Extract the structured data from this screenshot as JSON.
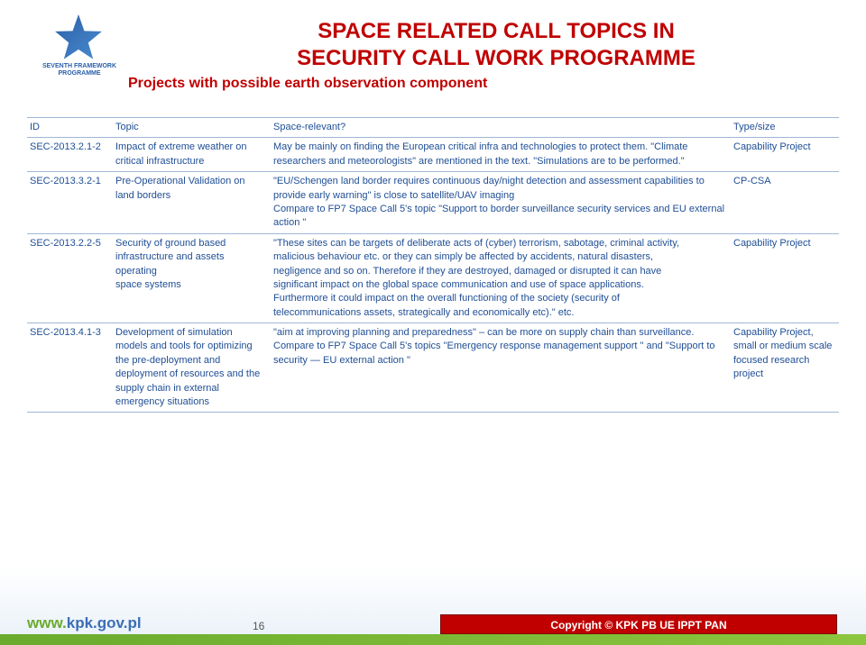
{
  "logo": {
    "line1": "SEVENTH FRAMEWORK",
    "line2": "PROGRAMME"
  },
  "title": {
    "line1": "SPACE RELATED CALL TOPICS IN",
    "line2": "SECURITY CALL  WORK PROGRAMME",
    "subtitle": "Projects with possible earth observation component"
  },
  "headers": {
    "id": "ID",
    "topic": "Topic",
    "relevant": "Space-relevant?",
    "type": "Type/size"
  },
  "rows": [
    {
      "id": "SEC-2013.2.1-2",
      "topic": "Impact of extreme weather on critical infrastructure",
      "relevant": "May be mainly on finding the European critical infra and technologies to protect them. \"Climate researchers and meteorologists\" are mentioned in the text. \"Simulations are to be performed.\"",
      "type": "Capability Project"
    },
    {
      "id": "SEC-2013.3.2-1",
      "topic": "Pre-Operational Validation on land borders",
      "relevant": "\"EU/Schengen land border requires continuous day/night detection and assessment capabilities to provide early warning\" is close to satellite/UAV imaging\nCompare to FP7 Space Call 5's topic \"Support to border surveillance security services and EU external action \"",
      "type": "CP-CSA"
    },
    {
      "id": "SEC-2013.2.2-5",
      "topic": "Security of ground based infrastructure and assets operating\nspace systems",
      "relevant": "\"These sites can be targets of deliberate acts of (cyber) terrorism, sabotage, criminal activity,\nmalicious behaviour etc. or they can simply be affected by accidents, natural disasters,\nnegligence and so on. Therefore if they are destroyed, damaged or disrupted it can have\nsignificant impact on the global space communication and use of space applications.\nFurthermore it could impact on the overall functioning of the society (security of\ntelecommunications assets, strategically and economically etc).\" etc.",
      "type": "Capability Project"
    },
    {
      "id": "SEC-2013.4.1-3",
      "topic": "Development of simulation models and tools for optimizing the pre-deployment and deployment of resources and the supply chain in external emergency situations",
      "relevant": "\"aim at improving planning and preparedness\" – can be more on supply chain than surveillance.\nCompare to FP7 Space Call 5's topics \"Emergency response management support \" and \"Support to security — EU external action \"",
      "type": "Capability Project, small or medium scale focused research project"
    }
  ],
  "footer": {
    "url_prefix": "www.",
    "url_rest": "kpk.gov.pl",
    "page": "16",
    "copyright": "Copyright © KPK PB UE IPPT PAN"
  }
}
